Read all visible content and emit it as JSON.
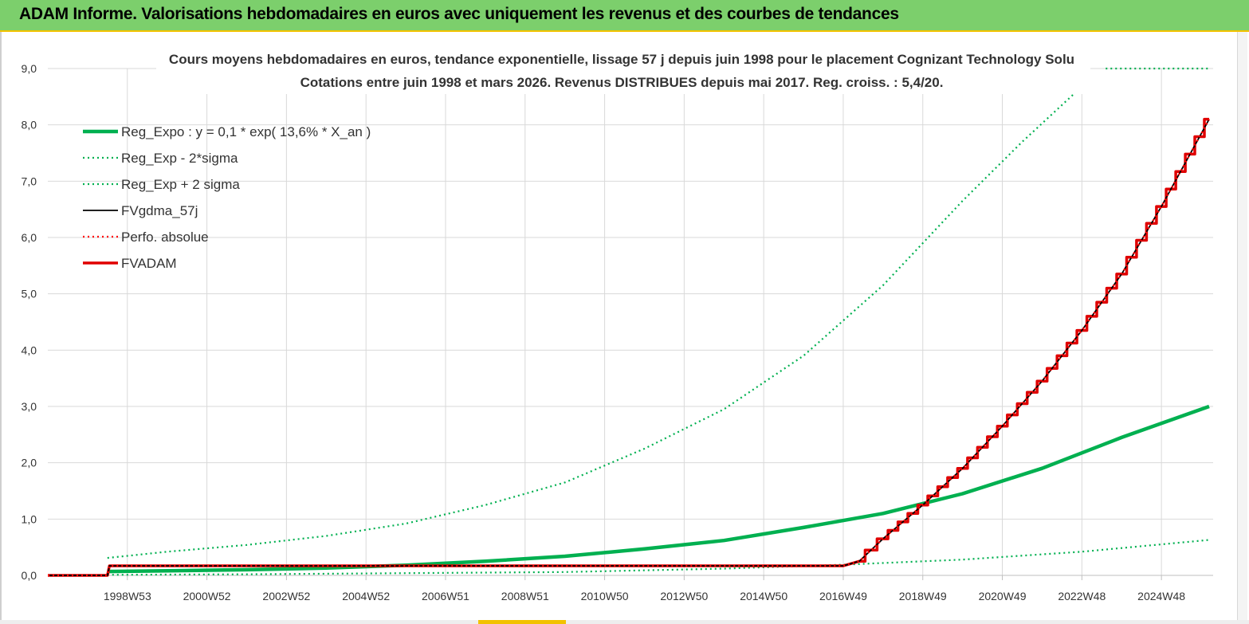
{
  "window": {
    "title": "ADAM Informe. Valorisations hebdomadaires en euros avec uniquement les revenus et des courbes de tendances"
  },
  "colors": {
    "header_bg": "#7ccf6c",
    "reg_expo": "#00b050",
    "reg_band": "#00b050",
    "fvgdma": "#000000",
    "perfo": "#ff0000",
    "fvadam": "#e00000"
  },
  "chart_data": {
    "type": "line",
    "title": "Cours moyens hebdomadaires en euros, tendance exponentielle, lissage 57 j depuis juin 1998 pour le placement Cognizant Technology Solu",
    "subtitle": "Cotations entre juin 1998 et mars 2026. Revenus DISTRIBUES depuis mai 2017. Reg. croiss. : 5,4/20.",
    "xlabel": "",
    "ylabel": "",
    "ylim": [
      0,
      9
    ],
    "xlim": [
      1997.0,
      2026.3
    ],
    "y_ticks": [
      "0,0",
      "1,0",
      "2,0",
      "3,0",
      "4,0",
      "5,0",
      "6,0",
      "7,0",
      "8,0",
      "9,0"
    ],
    "x_ticks": [
      {
        "label": "1998W53",
        "x": 1999.0
      },
      {
        "label": "2000W52",
        "x": 2001.0
      },
      {
        "label": "2002W52",
        "x": 2003.0
      },
      {
        "label": "2004W52",
        "x": 2005.0
      },
      {
        "label": "2006W51",
        "x": 2007.0
      },
      {
        "label": "2008W51",
        "x": 2009.0
      },
      {
        "label": "2010W50",
        "x": 2011.0
      },
      {
        "label": "2012W50",
        "x": 2013.0
      },
      {
        "label": "2014W50",
        "x": 2015.0
      },
      {
        "label": "2016W49",
        "x": 2017.0
      },
      {
        "label": "2018W49",
        "x": 2019.0
      },
      {
        "label": "2020W49",
        "x": 2021.0
      },
      {
        "label": "2022W48",
        "x": 2023.0
      },
      {
        "label": "2024W48",
        "x": 2025.0
      }
    ],
    "grid": true,
    "legend_position": "top-left",
    "series": [
      {
        "name": "Reg_Expo : y = 0,1 * exp( 13,6% *  X_an )",
        "style": "solid-thick",
        "color": "#00b050",
        "x": [
          1998.5,
          2000.0,
          2002.0,
          2004.0,
          2006.0,
          2008.0,
          2010.0,
          2012.0,
          2014.0,
          2016.0,
          2018.0,
          2020.0,
          2022.0,
          2024.0,
          2026.2
        ],
        "y": [
          0.07,
          0.08,
          0.1,
          0.13,
          0.18,
          0.25,
          0.34,
          0.47,
          0.62,
          0.85,
          1.1,
          1.45,
          1.9,
          2.45,
          3.0
        ]
      },
      {
        "name": "Reg_Exp - 2*sigma",
        "style": "dotted",
        "color": "#00b050",
        "x": [
          1998.5,
          2002.0,
          2006.0,
          2010.0,
          2014.0,
          2017.0,
          2020.0,
          2023.0,
          2026.2
        ],
        "y": [
          0.01,
          0.02,
          0.04,
          0.06,
          0.12,
          0.19,
          0.28,
          0.42,
          0.63
        ]
      },
      {
        "name": "Reg_Exp + 2 sigma",
        "style": "dotted",
        "color": "#00b050",
        "x": [
          1998.5,
          2000.0,
          2002.0,
          2004.0,
          2006.0,
          2008.0,
          2010.0,
          2012.0,
          2014.0,
          2016.0,
          2018.0,
          2020.0,
          2021.5,
          2022.8
        ],
        "y": [
          0.31,
          0.42,
          0.54,
          0.7,
          0.92,
          1.25,
          1.65,
          2.25,
          2.95,
          3.9,
          5.15,
          6.65,
          7.7,
          8.55
        ]
      },
      {
        "name": "FVgdma_57j",
        "style": "solid",
        "color": "#000000",
        "x": [
          1997.0,
          1998.5,
          1998.55,
          2017.0,
          2017.4,
          2018.0,
          2019.0,
          2020.0,
          2021.0,
          2022.0,
          2023.0,
          2024.0,
          2025.0,
          2026.2
        ],
        "y": [
          0.0,
          0.0,
          0.17,
          0.17,
          0.25,
          0.65,
          1.25,
          1.9,
          2.65,
          3.45,
          4.35,
          5.35,
          6.55,
          8.1
        ]
      },
      {
        "name": "Perfo. absolue",
        "style": "dotted",
        "color": "#ff0000",
        "x": [
          1997.0,
          1998.5,
          1998.55,
          2017.0,
          2017.4,
          2018.0,
          2019.0,
          2020.0,
          2021.0,
          2022.0,
          2023.0,
          2024.0,
          2025.0,
          2026.2
        ],
        "y": [
          0.0,
          0.0,
          0.17,
          0.17,
          0.25,
          0.65,
          1.25,
          1.9,
          2.65,
          3.45,
          4.35,
          5.35,
          6.55,
          8.1
        ]
      },
      {
        "name": "FVADAM",
        "style": "solid-thick-step",
        "color": "#e00000",
        "x": [
          1997.0,
          1998.5,
          1998.55,
          2017.0,
          2017.4,
          2018.0,
          2019.0,
          2020.0,
          2021.0,
          2022.0,
          2023.0,
          2024.0,
          2025.0,
          2026.2
        ],
        "y": [
          0.0,
          0.0,
          0.17,
          0.17,
          0.25,
          0.65,
          1.25,
          1.9,
          2.65,
          3.45,
          4.35,
          5.35,
          6.55,
          8.1
        ]
      }
    ],
    "right_dotted_marker": {
      "y": 9.0,
      "x_from": 2023.6,
      "x_to": 2026.2
    }
  }
}
